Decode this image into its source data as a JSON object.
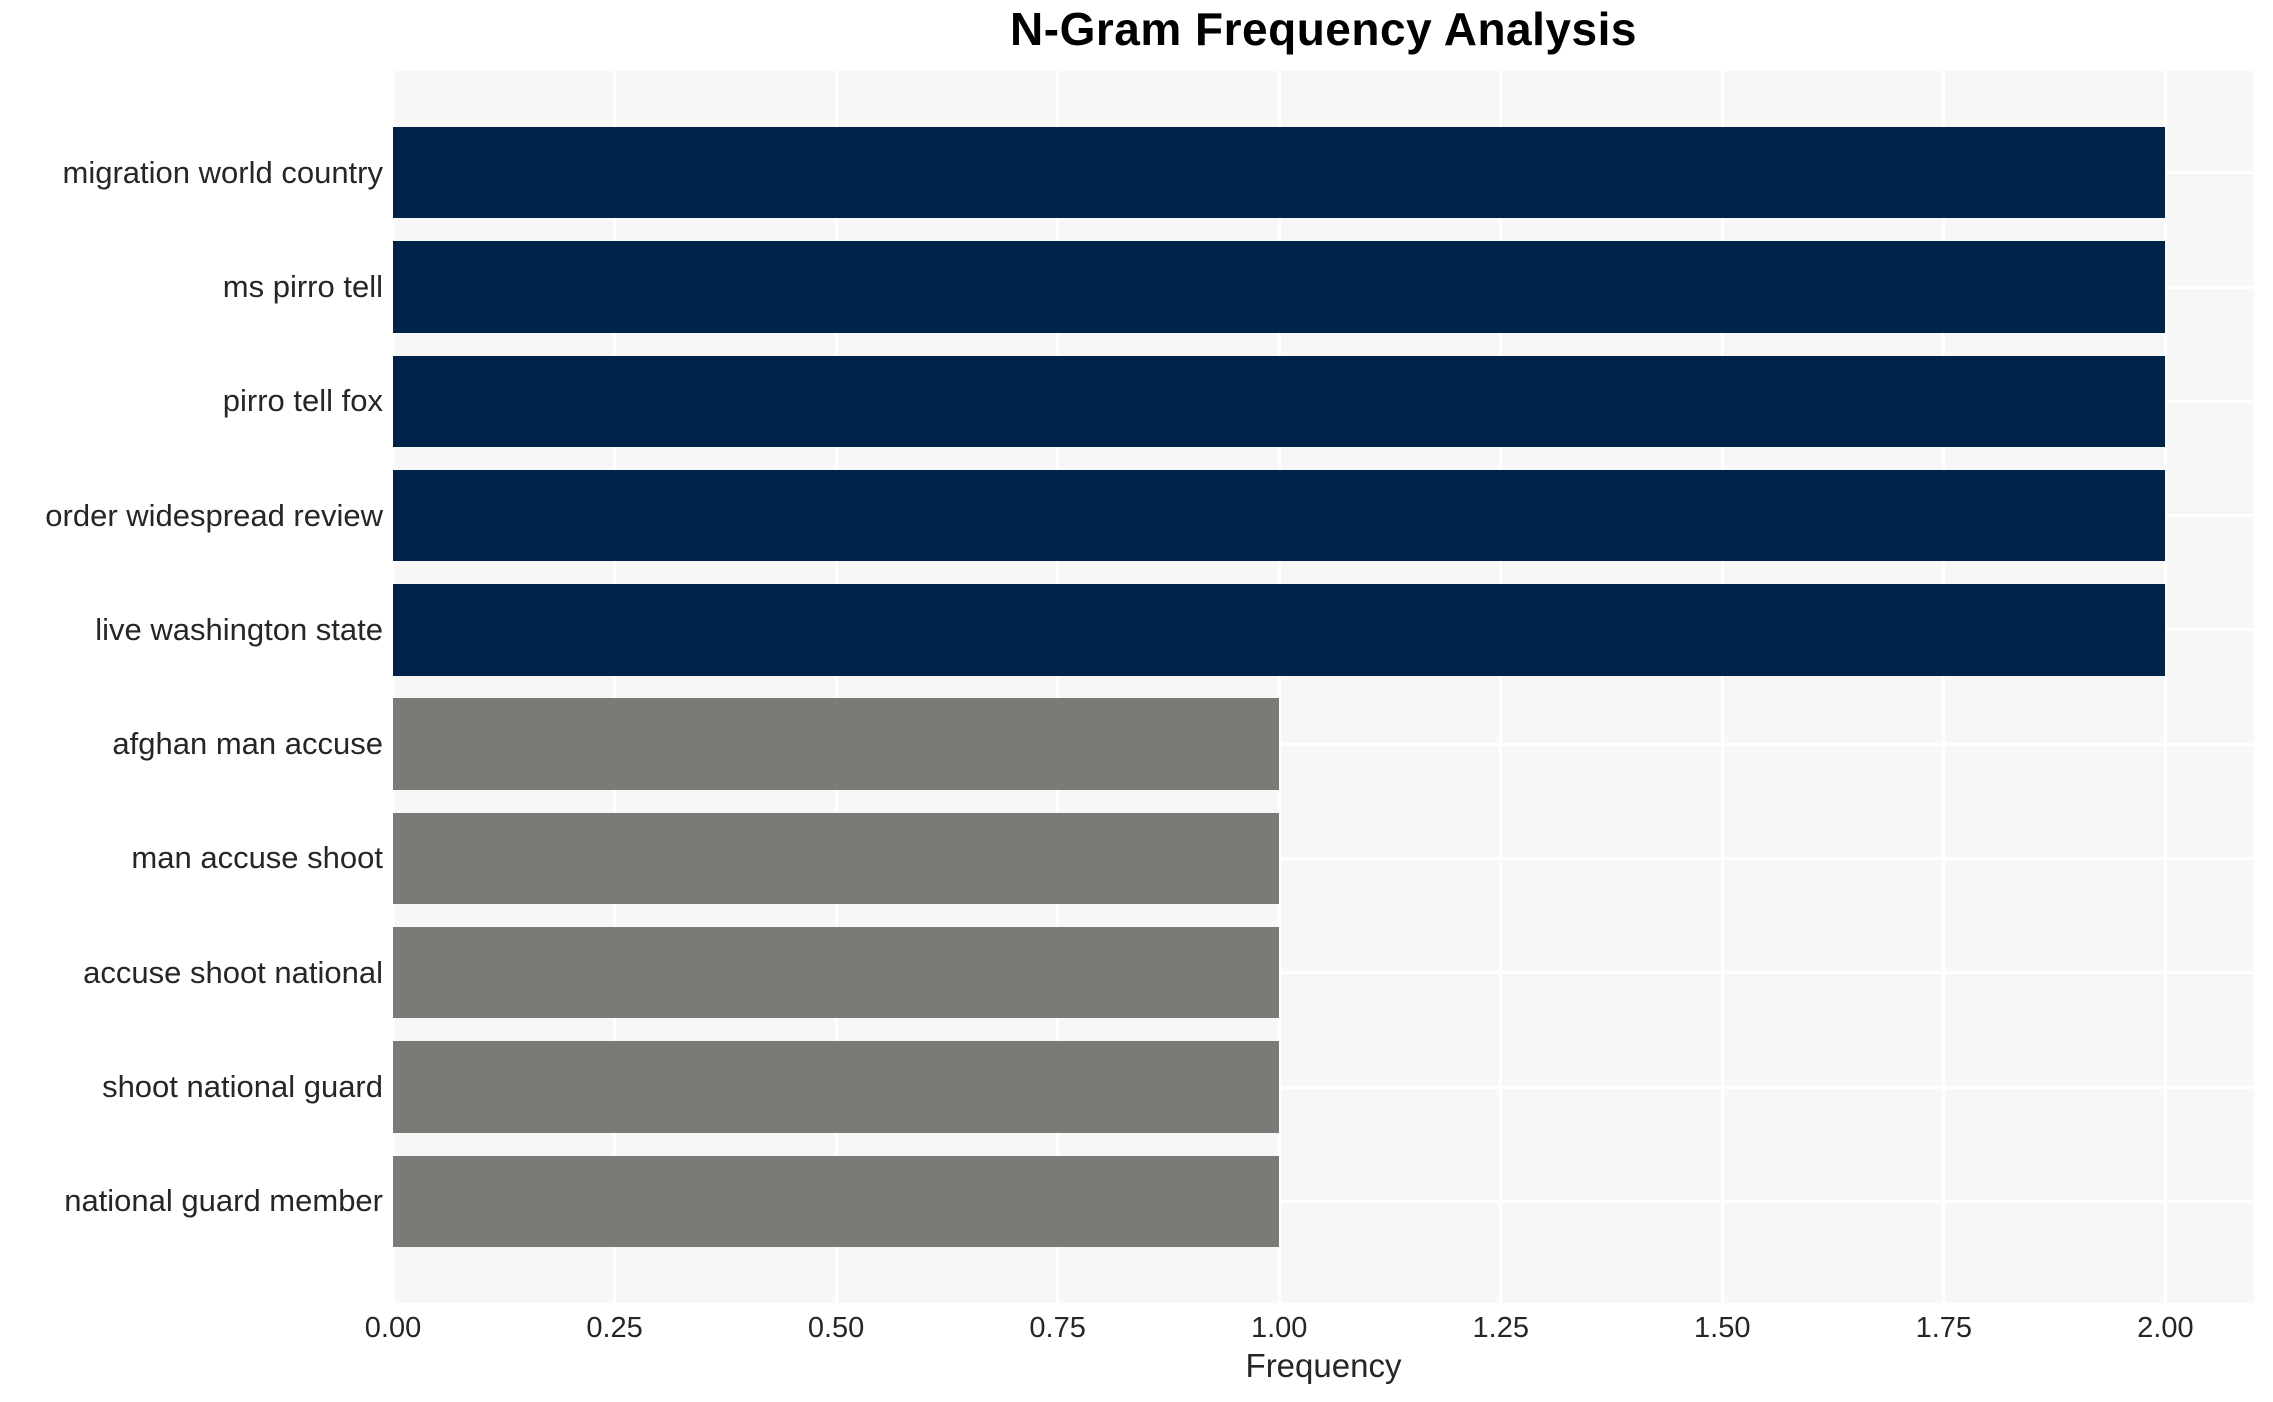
{
  "chart_data": {
    "type": "bar",
    "orientation": "horizontal",
    "title": "N-Gram Frequency Analysis",
    "xlabel": "Frequency",
    "ylabel": "",
    "categories": [
      "migration world country",
      "ms pirro tell",
      "pirro tell fox",
      "order widespread review",
      "live washington state",
      "afghan man accuse",
      "man accuse shoot",
      "accuse shoot national",
      "shoot national guard",
      "national guard member"
    ],
    "values": [
      2,
      2,
      2,
      2,
      2,
      1,
      1,
      1,
      1,
      1
    ],
    "bar_colors": [
      "#002349",
      "#002349",
      "#002349",
      "#002349",
      "#002349",
      "#7a7a77",
      "#7a7a77",
      "#7a7a77",
      "#7a7a77",
      "#7a7a77"
    ],
    "xlim": [
      0,
      2.1
    ],
    "xticks": [
      0,
      0.25,
      0.5,
      0.75,
      1.0,
      1.25,
      1.5,
      1.75,
      2.0
    ],
    "xtick_labels": [
      "0.00",
      "0.25",
      "0.50",
      "0.75",
      "1.00",
      "1.25",
      "1.50",
      "1.75",
      "2.00"
    ],
    "grid": true,
    "legend": "none",
    "colors": {
      "high_freq_bar": "#002349",
      "low_freq_bar": "#7a7a77",
      "plot_background": "#f7f7f7",
      "grid_line": "#ffffff",
      "tick_text": "#262626",
      "title_text": "#000000"
    }
  }
}
